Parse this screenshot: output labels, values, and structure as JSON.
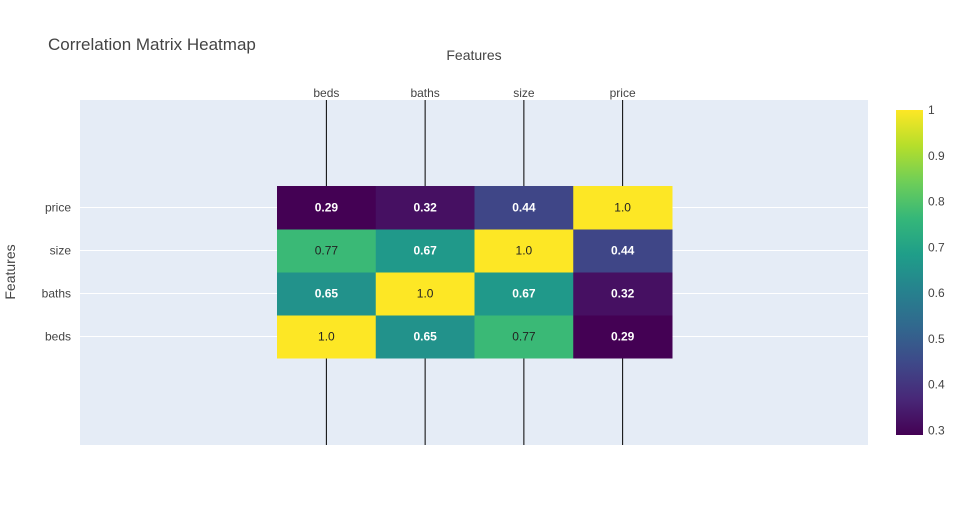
{
  "chart_data": {
    "type": "heatmap",
    "title": "Correlation Matrix Heatmap",
    "xlabel": "Features",
    "ylabel": "Features",
    "x": [
      "beds",
      "baths",
      "size",
      "price"
    ],
    "y": [
      "beds",
      "baths",
      "size",
      "price"
    ],
    "z": [
      [
        1.0,
        0.65,
        0.77,
        0.29
      ],
      [
        0.65,
        1.0,
        0.67,
        0.32
      ],
      [
        0.77,
        0.67,
        1.0,
        0.44
      ],
      [
        0.29,
        0.32,
        0.44,
        1.0
      ]
    ],
    "cell_text": [
      [
        "1.0",
        "0.65",
        "0.77",
        "0.29"
      ],
      [
        "0.65",
        "1.0",
        "0.67",
        "0.32"
      ],
      [
        "0.77",
        "0.67",
        "1.0",
        "0.44"
      ],
      [
        "0.29",
        "0.32",
        "0.44",
        "1.0"
      ]
    ],
    "colorscale": "Viridis",
    "zmin": 0.29,
    "zmax": 1.0,
    "colorbar_ticks": [
      "0.3",
      "0.4",
      "0.5",
      "0.6",
      "0.7",
      "0.8",
      "0.9",
      "1"
    ],
    "x_axis_side": "top",
    "grid": true,
    "colors": {
      "plot_background": "#e5ecf6",
      "gridline": "#ffffff",
      "text": "#444444"
    }
  }
}
